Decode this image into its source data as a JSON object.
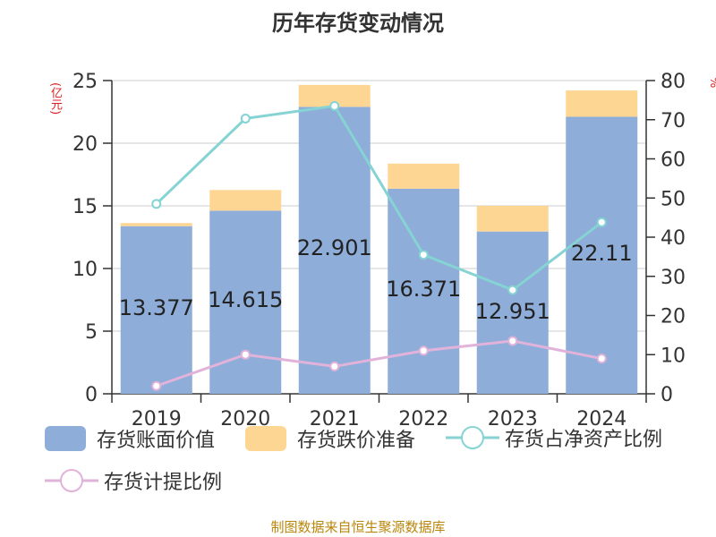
{
  "title": "历年存货变动情况",
  "y_left_unit": "(亿元)",
  "y_right_unit": "%",
  "source": "制图数据来自恒生聚源数据库",
  "colors": {
    "book_value": "#8eadd9",
    "reserve": "#fdd693",
    "net_assets_ratio": "#85d3d3",
    "provision_ratio": "#e2b3da",
    "axis": "#333333",
    "grid": "#cccccc"
  },
  "legend": [
    {
      "label": "存货账面价值",
      "type": "rect",
      "color_key": "book_value"
    },
    {
      "label": "存货跌价准备",
      "type": "rect",
      "color_key": "reserve"
    },
    {
      "label": "存货占净资产比例",
      "type": "line",
      "color_key": "net_assets_ratio"
    },
    {
      "label": "存货计提比例",
      "type": "line",
      "color_key": "provision_ratio"
    }
  ],
  "chart_data": {
    "type": "bar",
    "title": "历年存货变动情况",
    "categories": [
      "2019",
      "2020",
      "2021",
      "2022",
      "2023",
      "2024"
    ],
    "y_left": {
      "label": "(亿元)",
      "min": 0,
      "max": 25,
      "ticks": [
        0,
        5,
        10,
        15,
        20,
        25
      ]
    },
    "y_right": {
      "label": "%",
      "min": 0,
      "max": 80,
      "ticks": [
        0,
        10,
        20,
        30,
        40,
        50,
        60,
        70,
        80
      ]
    },
    "series": [
      {
        "name": "存货账面价值",
        "kind": "bar",
        "stack": "inventory",
        "axis": "left",
        "values": [
          13.377,
          14.615,
          22.901,
          16.371,
          12.951,
          22.11
        ],
        "labels": [
          "13.377",
          "14.615",
          "22.901",
          "16.371",
          "12.951",
          "22.11"
        ]
      },
      {
        "name": "存货跌价准备",
        "kind": "bar",
        "stack": "inventory",
        "axis": "left",
        "values": [
          0.25,
          1.65,
          1.75,
          2.0,
          2.05,
          2.1
        ]
      },
      {
        "name": "存货占净资产比例",
        "kind": "line",
        "axis": "right",
        "values": [
          48.5,
          70.3,
          73.5,
          35.5,
          26.5,
          43.8
        ]
      },
      {
        "name": "存货计提比例",
        "kind": "line",
        "axis": "right",
        "values": [
          2,
          10,
          7,
          11,
          13.5,
          9
        ]
      }
    ],
    "grid": true,
    "legend_position": "bottom"
  }
}
